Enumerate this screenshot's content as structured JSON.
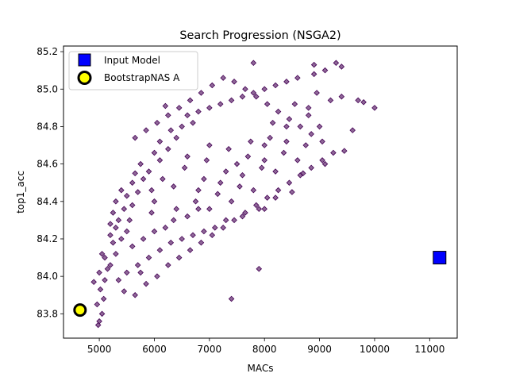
{
  "chart_data": {
    "type": "scatter",
    "title": "Search Progression (NSGA2)",
    "xlabel": "MACs",
    "ylabel": "top1_acc",
    "xlim": [
      4350,
      11500
    ],
    "ylim": [
      83.67,
      85.23
    ],
    "x_ticks": [
      5000,
      6000,
      7000,
      8000,
      9000,
      10000,
      11000
    ],
    "y_ticks": [
      83.8,
      84.0,
      84.2,
      84.4,
      84.6,
      84.8,
      85.0,
      85.2
    ],
    "grid": false,
    "legend_position": "upper-left",
    "colors": {
      "population": "#440154",
      "input_model": "#0000ff",
      "bootstrapnas": "#ffff00",
      "edge": "#000000"
    },
    "series": [
      {
        "name": "",
        "marker": "diamond",
        "points": [
          [
            4980,
            83.74
          ],
          [
            5000,
            83.76
          ],
          [
            5050,
            83.8
          ],
          [
            4960,
            83.85
          ],
          [
            5080,
            83.88
          ],
          [
            5020,
            83.93
          ],
          [
            4900,
            83.97
          ],
          [
            5100,
            83.98
          ],
          [
            5000,
            84.02
          ],
          [
            5150,
            84.04
          ],
          [
            5200,
            84.06
          ],
          [
            5100,
            84.1
          ],
          [
            5300,
            84.12
          ],
          [
            5050,
            84.12
          ],
          [
            5250,
            84.18
          ],
          [
            5200,
            84.22
          ],
          [
            5400,
            84.2
          ],
          [
            5300,
            84.26
          ],
          [
            5500,
            84.24
          ],
          [
            5350,
            84.3
          ],
          [
            5250,
            84.34
          ],
          [
            5450,
            84.36
          ],
          [
            5300,
            84.4
          ],
          [
            5600,
            84.38
          ],
          [
            5500,
            84.43
          ],
          [
            5700,
            84.45
          ],
          [
            5400,
            84.46
          ],
          [
            5600,
            84.5
          ],
          [
            5800,
            84.52
          ],
          [
            5650,
            84.55
          ],
          [
            5900,
            84.56
          ],
          [
            5750,
            84.6
          ],
          [
            6100,
            84.62
          ],
          [
            6000,
            84.66
          ],
          [
            6250,
            84.68
          ],
          [
            6100,
            84.72
          ],
          [
            6400,
            84.74
          ],
          [
            6300,
            84.78
          ],
          [
            6500,
            84.8
          ],
          [
            6700,
            84.82
          ],
          [
            6600,
            84.86
          ],
          [
            6800,
            84.88
          ],
          [
            7000,
            84.9
          ],
          [
            7200,
            84.92
          ],
          [
            7400,
            84.94
          ],
          [
            7600,
            84.96
          ],
          [
            7800,
            84.98
          ],
          [
            8000,
            85.0
          ],
          [
            8200,
            85.02
          ],
          [
            8400,
            85.04
          ],
          [
            8600,
            85.06
          ],
          [
            8900,
            85.08
          ],
          [
            9100,
            85.1
          ],
          [
            9400,
            85.12
          ],
          [
            7800,
            85.14
          ],
          [
            8900,
            85.13
          ],
          [
            9300,
            85.14
          ],
          [
            9400,
            84.96
          ],
          [
            9700,
            84.94
          ],
          [
            9800,
            84.93
          ],
          [
            10000,
            84.9
          ],
          [
            9600,
            84.78
          ],
          [
            9450,
            84.67
          ],
          [
            9100,
            84.6
          ],
          [
            8700,
            84.55
          ],
          [
            8500,
            84.45
          ],
          [
            8200,
            84.42
          ],
          [
            7900,
            84.36
          ],
          [
            7600,
            84.32
          ],
          [
            7300,
            84.3
          ],
          [
            7100,
            84.26
          ],
          [
            6900,
            84.24
          ],
          [
            6700,
            84.22
          ],
          [
            6500,
            84.2
          ],
          [
            6300,
            84.18
          ],
          [
            6100,
            84.14
          ],
          [
            5900,
            84.1
          ],
          [
            5700,
            84.06
          ],
          [
            5500,
            84.02
          ],
          [
            5350,
            83.98
          ],
          [
            5450,
            83.92
          ],
          [
            5650,
            83.9
          ],
          [
            5850,
            83.96
          ],
          [
            6050,
            84.0
          ],
          [
            6250,
            84.06
          ],
          [
            6450,
            84.1
          ],
          [
            6650,
            84.14
          ],
          [
            6850,
            84.18
          ],
          [
            7050,
            84.22
          ],
          [
            7250,
            84.26
          ],
          [
            7450,
            84.3
          ],
          [
            7650,
            84.34
          ],
          [
            7850,
            84.38
          ],
          [
            8050,
            84.42
          ],
          [
            8250,
            84.46
          ],
          [
            8450,
            84.5
          ],
          [
            8650,
            84.54
          ],
          [
            8850,
            84.58
          ],
          [
            9050,
            84.62
          ],
          [
            9250,
            84.66
          ],
          [
            9050,
            84.72
          ],
          [
            8850,
            84.76
          ],
          [
            8650,
            84.8
          ],
          [
            8450,
            84.84
          ],
          [
            8250,
            84.88
          ],
          [
            8050,
            84.92
          ],
          [
            7850,
            84.96
          ],
          [
            7650,
            85.0
          ],
          [
            7450,
            85.04
          ],
          [
            7250,
            85.06
          ],
          [
            7050,
            85.02
          ],
          [
            6850,
            84.98
          ],
          [
            6650,
            84.94
          ],
          [
            6450,
            84.9
          ],
          [
            6250,
            84.86
          ],
          [
            6050,
            84.82
          ],
          [
            5850,
            84.78
          ],
          [
            5650,
            84.74
          ],
          [
            6200,
            84.91
          ],
          [
            7400,
            83.88
          ],
          [
            7900,
            84.04
          ],
          [
            8000,
            84.36
          ],
          [
            6800,
            84.36
          ],
          [
            6000,
            84.4
          ],
          [
            6600,
            84.64
          ],
          [
            7000,
            84.7
          ],
          [
            7500,
            84.6
          ],
          [
            8000,
            84.7
          ],
          [
            8400,
            84.8
          ],
          [
            8800,
            84.9
          ],
          [
            6350,
            84.48
          ],
          [
            6900,
            84.52
          ],
          [
            7300,
            84.56
          ],
          [
            7700,
            84.64
          ],
          [
            8100,
            84.74
          ],
          [
            5550,
            84.3
          ],
          [
            5950,
            84.34
          ],
          [
            6350,
            84.3
          ],
          [
            6750,
            84.4
          ],
          [
            7150,
            84.44
          ],
          [
            7550,
            84.48
          ],
          [
            7950,
            84.58
          ],
          [
            8350,
            84.66
          ],
          [
            8750,
            84.7
          ],
          [
            5800,
            84.2
          ],
          [
            6200,
            84.26
          ],
          [
            6600,
            84.32
          ],
          [
            7000,
            84.36
          ],
          [
            7400,
            84.4
          ],
          [
            7800,
            84.46
          ],
          [
            8200,
            84.56
          ],
          [
            8600,
            84.62
          ],
          [
            9000,
            84.8
          ],
          [
            5200,
            84.28
          ],
          [
            5600,
            84.16
          ],
          [
            6000,
            84.24
          ],
          [
            6400,
            84.36
          ],
          [
            6800,
            84.46
          ],
          [
            7200,
            84.5
          ],
          [
            7600,
            84.54
          ],
          [
            8000,
            84.62
          ],
          [
            8400,
            84.72
          ],
          [
            8800,
            84.86
          ],
          [
            9200,
            84.94
          ],
          [
            5750,
            84.02
          ],
          [
            5950,
            84.46
          ],
          [
            6150,
            84.52
          ],
          [
            6550,
            84.58
          ],
          [
            6950,
            84.62
          ],
          [
            7350,
            84.68
          ],
          [
            7750,
            84.72
          ],
          [
            8150,
            84.82
          ],
          [
            8550,
            84.92
          ],
          [
            8950,
            84.98
          ]
        ]
      },
      {
        "name": "Input Model",
        "marker": "square",
        "points": [
          [
            11180,
            84.1
          ]
        ]
      },
      {
        "name": "BootstrapNAS A",
        "marker": "circle",
        "points": [
          [
            4650,
            83.82
          ]
        ]
      }
    ]
  }
}
